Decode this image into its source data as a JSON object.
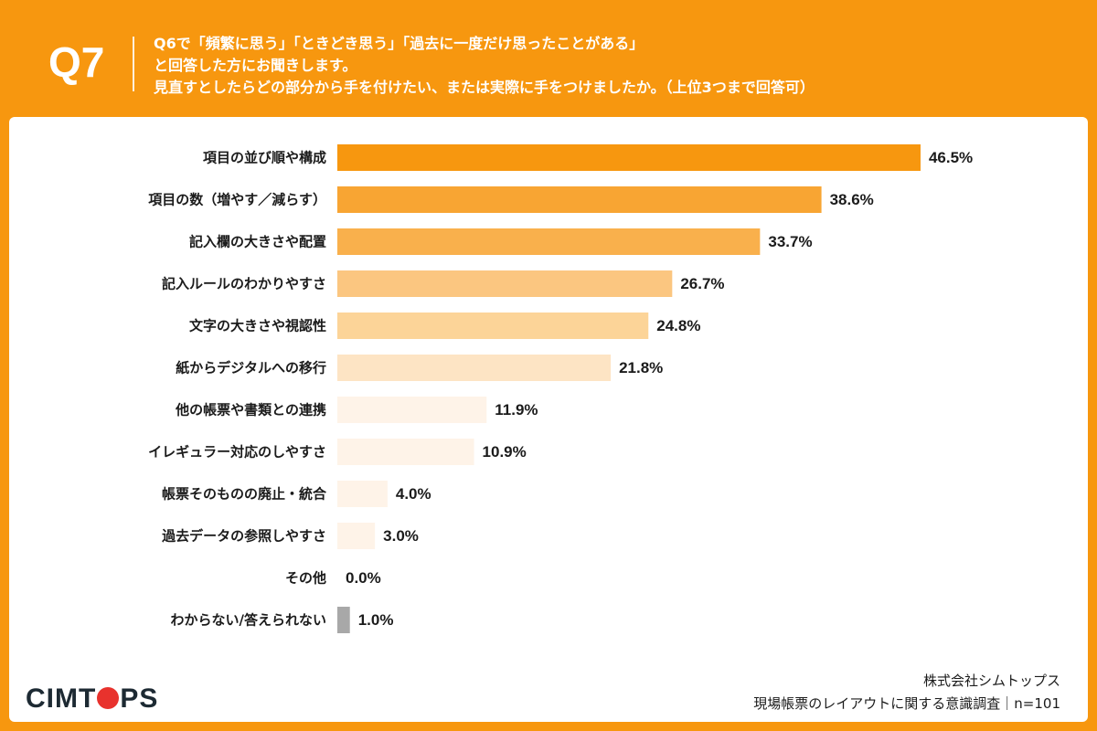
{
  "header": {
    "q_number": "Q7",
    "question_lines": [
      "Q6で「頻繁に思う」「ときどき思う」「過去に一度だけ思ったことがある」",
      "と回答した方にお聞きします。",
      "見直すとしたらどの部分から手を付けたい、または実際に手をつけましたか。（上位3つまで回答可）"
    ]
  },
  "colors": {
    "background": "#f7970f",
    "bar_shades": [
      "#f7970f",
      "#f8a533",
      "#f9b04c",
      "#fbc680",
      "#fcd498",
      "#fde4c4",
      "#fef3e8",
      "#fef3e8",
      "#fef3e8",
      "#fef3e8",
      "#fef3e8",
      "#a8a8a8"
    ]
  },
  "chart_data": {
    "type": "bar",
    "orientation": "horizontal",
    "unit": "%",
    "categories": [
      "項目の並び順や構成",
      "項目の数（増やす／減らす）",
      "記入欄の大きさや配置",
      "記入ルールのわかりやすさ",
      "文字の大きさや視認性",
      "紙からデジタルへの移行",
      "他の帳票や書類との連携",
      "イレギュラー対応のしやすさ",
      "帳票そのものの廃止・統合",
      "過去データの参照しやすさ",
      "その他",
      "わからない/答えられない"
    ],
    "values": [
      46.5,
      38.6,
      33.7,
      26.7,
      24.8,
      21.8,
      11.9,
      10.9,
      4.0,
      3.0,
      0.0,
      1.0
    ],
    "value_labels": [
      "46.5%",
      "38.6%",
      "33.7%",
      "26.7%",
      "24.8%",
      "21.8%",
      "11.9%",
      "10.9%",
      "4.0%",
      "3.0%",
      "0.0%",
      "1.0%"
    ],
    "xlim": [
      0,
      50
    ]
  },
  "brand": {
    "logo_before": "CIMT",
    "logo_after": "PS"
  },
  "footer": {
    "company": "株式会社シムトップス",
    "survey": "現場帳票のレイアウトに関する意識調査｜n=101"
  }
}
